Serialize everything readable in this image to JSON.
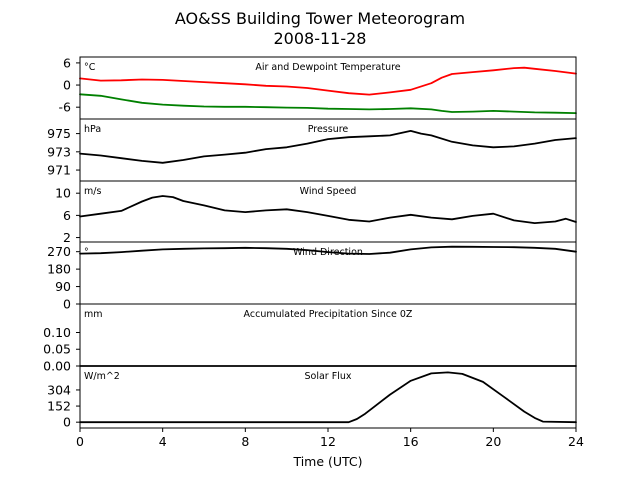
{
  "chart_data": {
    "type": "line",
    "title": "AO&SS Building Tower Meteorogram",
    "subtitle": "2008-11-28",
    "xlabel": "Time (UTC)",
    "xlim": [
      0,
      24
    ],
    "xticks": [
      0,
      4,
      8,
      12,
      16,
      20,
      24
    ],
    "grid": false,
    "panels": [
      {
        "label": "Air and Dewpoint Temperature",
        "unit": "°C",
        "ylim": [
          -9.2,
          7.6
        ],
        "yticks": [
          -6,
          0,
          6
        ],
        "series": [
          {
            "color": "#ff0000",
            "x": [
              0,
              1,
              2,
              3,
              4,
              5,
              6,
              7,
              8,
              9,
              10,
              11,
              12,
              13,
              14,
              15,
              16,
              17,
              17.5,
              18,
              19,
              20,
              21,
              21.5,
              22,
              23,
              24
            ],
            "y": [
              1.8,
              1.2,
              1.3,
              1.5,
              1.4,
              1.1,
              0.8,
              0.5,
              0.2,
              -0.2,
              -0.4,
              -0.8,
              -1.5,
              -2.2,
              -2.6,
              -2.0,
              -1.3,
              0.5,
              2.0,
              3.0,
              3.5,
              4.0,
              4.6,
              4.7,
              4.4,
              3.8,
              3.1
            ]
          },
          {
            "color": "#008000",
            "x": [
              0,
              1,
              2,
              3,
              4,
              5,
              6,
              7,
              8,
              9,
              10,
              11,
              12,
              13,
              14,
              15,
              16,
              17,
              17.5,
              18,
              19,
              20,
              21,
              22,
              23,
              24
            ],
            "y": [
              -2.5,
              -2.9,
              -3.9,
              -4.8,
              -5.3,
              -5.6,
              -5.8,
              -5.9,
              -5.9,
              -6.0,
              -6.1,
              -6.2,
              -6.4,
              -6.5,
              -6.6,
              -6.5,
              -6.3,
              -6.6,
              -7.0,
              -7.3,
              -7.2,
              -7.0,
              -7.2,
              -7.4,
              -7.5,
              -7.6
            ]
          }
        ]
      },
      {
        "label": "Pressure",
        "unit": "hPa",
        "ylim": [
          969.8,
          976.6
        ],
        "yticks": [
          971,
          973,
          975
        ],
        "series": [
          {
            "color": "#000000",
            "x": [
              0,
              1,
              2,
              3,
              4,
              5,
              6,
              7,
              8,
              9,
              10,
              11,
              12,
              13,
              14,
              15,
              16,
              16.5,
              17,
              18,
              19,
              20,
              21,
              22,
              23,
              24
            ],
            "y": [
              972.8,
              972.6,
              972.3,
              972.0,
              971.8,
              972.1,
              972.5,
              972.7,
              972.9,
              973.3,
              973.5,
              973.9,
              974.4,
              974.6,
              974.7,
              974.8,
              975.3,
              975.0,
              974.8,
              974.1,
              973.7,
              973.5,
              973.6,
              973.9,
              974.3,
              974.5
            ]
          }
        ]
      },
      {
        "label": "Wind Speed",
        "unit": "m/s",
        "ylim": [
          1.2,
          12.2
        ],
        "yticks": [
          2,
          6,
          10
        ],
        "series": [
          {
            "color": "#000000",
            "x": [
              0,
              1,
              2,
              3,
              3.5,
              4,
              4.5,
              5,
              6,
              7,
              8,
              9,
              10,
              11,
              12,
              13,
              14,
              15,
              16,
              17,
              18,
              19,
              20,
              21,
              22,
              23,
              23.5,
              24
            ],
            "y": [
              5.8,
              6.3,
              6.8,
              8.5,
              9.2,
              9.5,
              9.3,
              8.6,
              7.8,
              6.9,
              6.6,
              6.9,
              7.1,
              6.6,
              5.9,
              5.2,
              4.9,
              5.6,
              6.1,
              5.6,
              5.3,
              5.9,
              6.3,
              5.1,
              4.6,
              4.9,
              5.4,
              4.8
            ]
          }
        ]
      },
      {
        "label": "Wind Direction",
        "unit": "°",
        "ylim": [
          0,
          320
        ],
        "yticks": [
          0,
          90,
          180,
          270
        ],
        "series": [
          {
            "color": "#000000",
            "x": [
              0,
              1,
              2,
              3,
              4,
              5,
              6,
              7,
              8,
              9,
              10,
              11,
              12,
              13,
              14,
              15,
              16,
              17,
              18,
              19,
              20,
              21,
              22,
              23,
              24
            ],
            "y": [
              260,
              262,
              268,
              275,
              282,
              285,
              287,
              288,
              290,
              288,
              285,
              278,
              268,
              260,
              258,
              265,
              282,
              292,
              296,
              295,
              294,
              293,
              290,
              285,
              270
            ]
          }
        ]
      },
      {
        "label": "Accumulated Precipitation Since 0Z",
        "unit": "mm",
        "ylim": [
          0,
          0.185
        ],
        "yticks": [
          0.0,
          0.05,
          0.1
        ],
        "ytick_labels": [
          "0.00",
          "0.05",
          "0.10"
        ],
        "series": [
          {
            "color": "#000000",
            "x": [
              0,
              24
            ],
            "y": [
              0,
              0
            ]
          }
        ]
      },
      {
        "label": "Solar Flux",
        "unit": "W/m^2",
        "ylim": [
          -55,
          530
        ],
        "yticks": [
          0,
          152,
          304
        ],
        "series": [
          {
            "color": "#000000",
            "x": [
              0,
              13.0,
              13.4,
              13.8,
              14.2,
              15.0,
              16.0,
              17.0,
              17.8,
              18.5,
              19.5,
              20.5,
              21.5,
              22.0,
              22.4,
              24
            ],
            "y": [
              0,
              0,
              30,
              80,
              140,
              260,
              390,
              460,
              470,
              455,
              380,
              240,
              100,
              40,
              5,
              0
            ]
          }
        ]
      }
    ]
  }
}
